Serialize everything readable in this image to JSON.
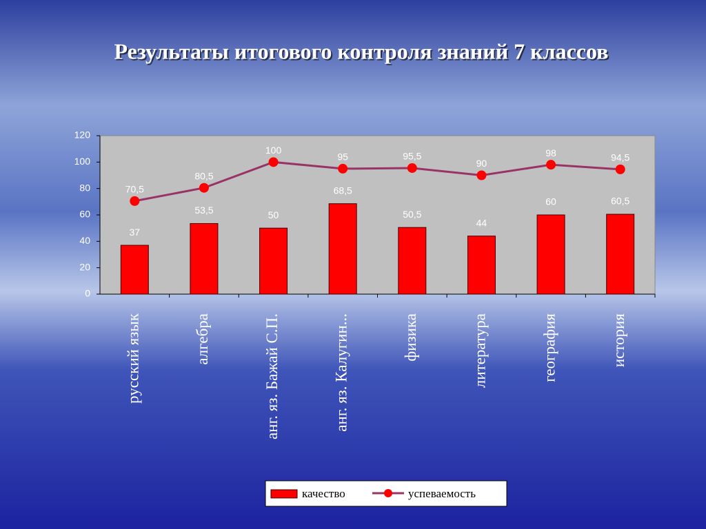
{
  "chart_data": {
    "type": "bar",
    "title": "Результаты итогового контроля знаний 7 классов",
    "categories": [
      "русский язык",
      "алгебра",
      "анг. яз. Бажай С.П.",
      "анг. яз. Калугин...",
      "физика",
      "литература",
      "география",
      "история"
    ],
    "series": [
      {
        "name": "качество",
        "type": "bar",
        "color": "#ff0000",
        "values": [
          37,
          53.5,
          50,
          68.5,
          50.5,
          44,
          60,
          60.5
        ],
        "value_labels": [
          "37",
          "53,5",
          "50",
          "68,5",
          "50,5",
          "44",
          "60",
          "60,5"
        ]
      },
      {
        "name": "успеваемость",
        "type": "line",
        "color": "#993366",
        "marker_color": "#ff0000",
        "values": [
          70.5,
          80.5,
          100,
          95,
          95.5,
          90,
          98,
          94.5
        ],
        "value_labels": [
          "70,5",
          "80,5",
          "100",
          "95",
          "95,5",
          "90",
          "98",
          "94,5"
        ]
      }
    ],
    "ylim": [
      0,
      120
    ],
    "yticks": [
      0,
      20,
      40,
      60,
      80,
      100,
      120
    ],
    "grid": false,
    "legend": "bottom"
  }
}
